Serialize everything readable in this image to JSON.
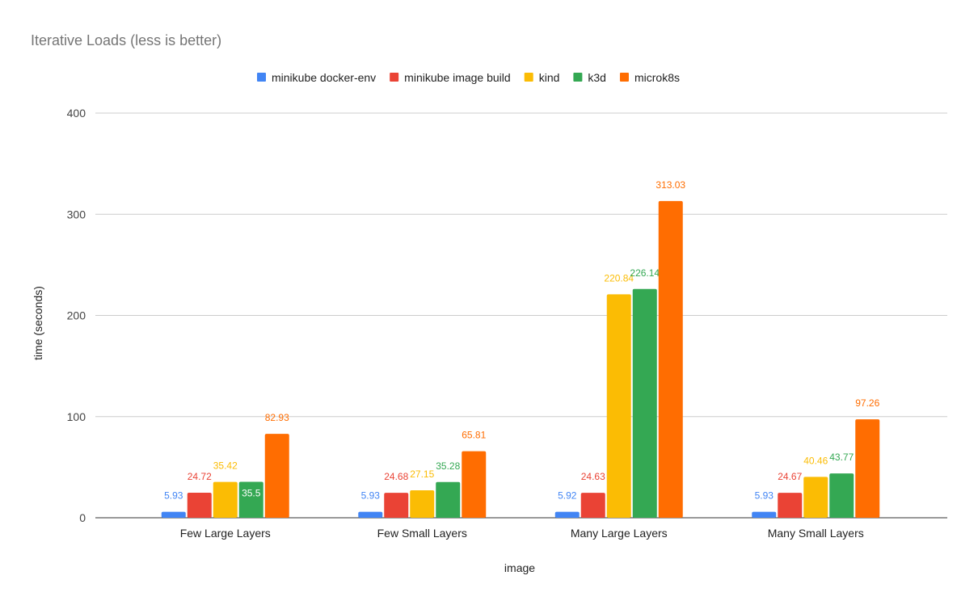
{
  "chart_data": {
    "type": "bar",
    "title": "Iterative Loads (less is better)",
    "xlabel": "image",
    "ylabel": "time (seconds)",
    "ylim": [
      0,
      400
    ],
    "yticks": [
      0,
      100,
      200,
      300,
      400
    ],
    "grid": true,
    "legend": "top",
    "categories": [
      "Few Large Layers",
      "Few Small Layers",
      "Many Large Layers",
      "Many Small Layers"
    ],
    "series": [
      {
        "name": "minikube docker-env",
        "color": "#4285F4",
        "values": [
          5.93,
          5.93,
          5.92,
          5.93
        ]
      },
      {
        "name": "minikube image build",
        "color": "#EA4335",
        "values": [
          24.72,
          24.68,
          24.63,
          24.67
        ]
      },
      {
        "name": "kind",
        "color": "#FBBC04",
        "values": [
          35.42,
          27.15,
          220.84,
          40.46
        ]
      },
      {
        "name": "k3d",
        "color": "#34A853",
        "values": [
          35.5,
          35.28,
          226.14,
          43.77
        ]
      },
      {
        "name": "microk8s",
        "color": "#FF6D01",
        "values": [
          82.93,
          65.81,
          313.03,
          97.26
        ]
      }
    ]
  }
}
